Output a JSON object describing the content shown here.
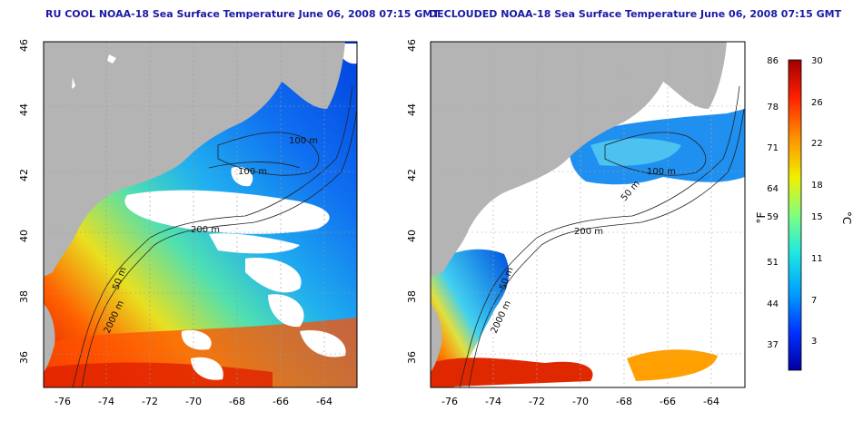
{
  "panels": [
    {
      "title": "RU COOL NOAA-18 Sea Surface Temperature June 06, 2008 07:15 GMT",
      "contours": [
        "100 m",
        "100 m",
        "200 m",
        "50 m",
        "2000 m"
      ]
    },
    {
      "title": "DECLOUDED NOAA-18 Sea Surface Temperature June 06, 2008 07:15 GMT",
      "contours": [
        "100 m",
        "50 m",
        "200 m",
        "50 m",
        "2000 m"
      ]
    }
  ],
  "axes": {
    "lat_ticks": [
      "36",
      "38",
      "40",
      "42",
      "44",
      "46"
    ],
    "lon_ticks": [
      "-76",
      "-74",
      "-72",
      "-70",
      "-68",
      "-66",
      "-64"
    ]
  },
  "colorbar": {
    "fahrenheit_label": "°F",
    "celsius_label": "°C",
    "fahrenheit_ticks": [
      "86",
      "78",
      "71",
      "64",
      "59",
      "51",
      "44",
      "37"
    ],
    "celsius_ticks": [
      "30",
      "26",
      "22",
      "18",
      "15",
      "11",
      "7",
      "3"
    ],
    "colors": [
      "#0000a0",
      "#0030ff",
      "#00a0ff",
      "#20e8e0",
      "#80ff80",
      "#f0f000",
      "#ff9000",
      "#ff2000",
      "#a00000"
    ]
  },
  "colors": {
    "land": "#b4b4b4",
    "cloud": "#ffffff",
    "title": "#1a1aa6"
  }
}
